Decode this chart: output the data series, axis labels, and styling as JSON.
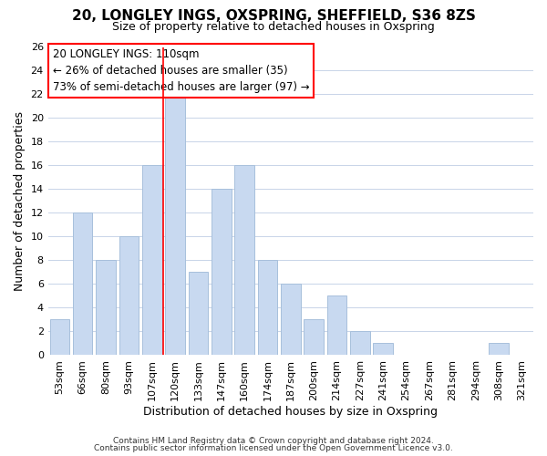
{
  "title": "20, LONGLEY INGS, OXSPRING, SHEFFIELD, S36 8ZS",
  "subtitle": "Size of property relative to detached houses in Oxspring",
  "xlabel": "Distribution of detached houses by size in Oxspring",
  "ylabel": "Number of detached properties",
  "bar_color": "#c8d9f0",
  "bar_edge_color": "#a8c0dc",
  "categories": [
    "53sqm",
    "66sqm",
    "80sqm",
    "93sqm",
    "107sqm",
    "120sqm",
    "133sqm",
    "147sqm",
    "160sqm",
    "174sqm",
    "187sqm",
    "200sqm",
    "214sqm",
    "227sqm",
    "241sqm",
    "254sqm",
    "267sqm",
    "281sqm",
    "294sqm",
    "308sqm",
    "321sqm"
  ],
  "values": [
    3,
    12,
    8,
    10,
    16,
    22,
    7,
    14,
    16,
    8,
    6,
    3,
    5,
    2,
    1,
    0,
    0,
    0,
    0,
    1,
    0
  ],
  "ylim": [
    0,
    26
  ],
  "yticks": [
    0,
    2,
    4,
    6,
    8,
    10,
    12,
    14,
    16,
    18,
    20,
    22,
    24,
    26
  ],
  "vline_x_index": 4.5,
  "annotation_title": "20 LONGLEY INGS: 110sqm",
  "annotation_line1": "← 26% of detached houses are smaller (35)",
  "annotation_line2": "73% of semi-detached houses are larger (97) →",
  "footer_line1": "Contains HM Land Registry data © Crown copyright and database right 2024.",
  "footer_line2": "Contains public sector information licensed under the Open Government Licence v3.0.",
  "background_color": "#ffffff",
  "grid_color": "#c8d4e8",
  "title_fontsize": 11,
  "subtitle_fontsize": 9,
  "annotation_fontsize": 8.5,
  "axis_label_fontsize": 9,
  "tick_fontsize": 8
}
